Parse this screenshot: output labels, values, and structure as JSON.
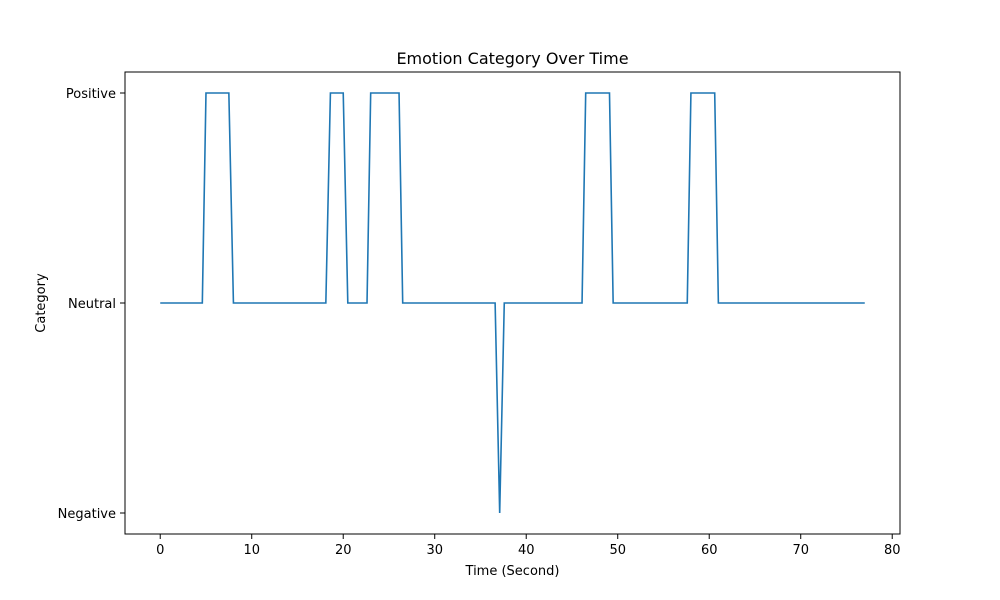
{
  "chart_data": {
    "type": "line",
    "title": "Emotion Category Over Time",
    "xlabel": "Time (Second)",
    "ylabel": "Category",
    "xlim": [
      -3.85,
      80.85
    ],
    "ylim": [
      -0.1,
      2.1
    ],
    "xticks": [
      0,
      10,
      20,
      30,
      40,
      50,
      60,
      70,
      80
    ],
    "xtick_labels": [
      "0",
      "10",
      "20",
      "30",
      "40",
      "50",
      "60",
      "70",
      "80"
    ],
    "yticks": [
      0,
      1,
      2
    ],
    "ytick_labels": [
      "Negative",
      "Neutral",
      "Positive"
    ],
    "grid": false,
    "legend": "none",
    "line_color": "#1f77b4",
    "series": [
      {
        "x": [
          0,
          4.6,
          5.0,
          7.5,
          8.0,
          18.1,
          18.6,
          20.0,
          20.5,
          22.6,
          23.0,
          26.1,
          26.5,
          36.6,
          37.1,
          37.6,
          46.1,
          46.5,
          49.1,
          49.5,
          57.6,
          58.0,
          60.6,
          61.0,
          77.0
        ],
        "y": [
          1,
          1,
          2,
          2,
          1,
          1,
          2,
          2,
          1,
          1,
          2,
          2,
          1,
          1,
          0,
          1,
          1,
          2,
          2,
          1,
          1,
          2,
          2,
          1,
          1
        ]
      }
    ]
  }
}
